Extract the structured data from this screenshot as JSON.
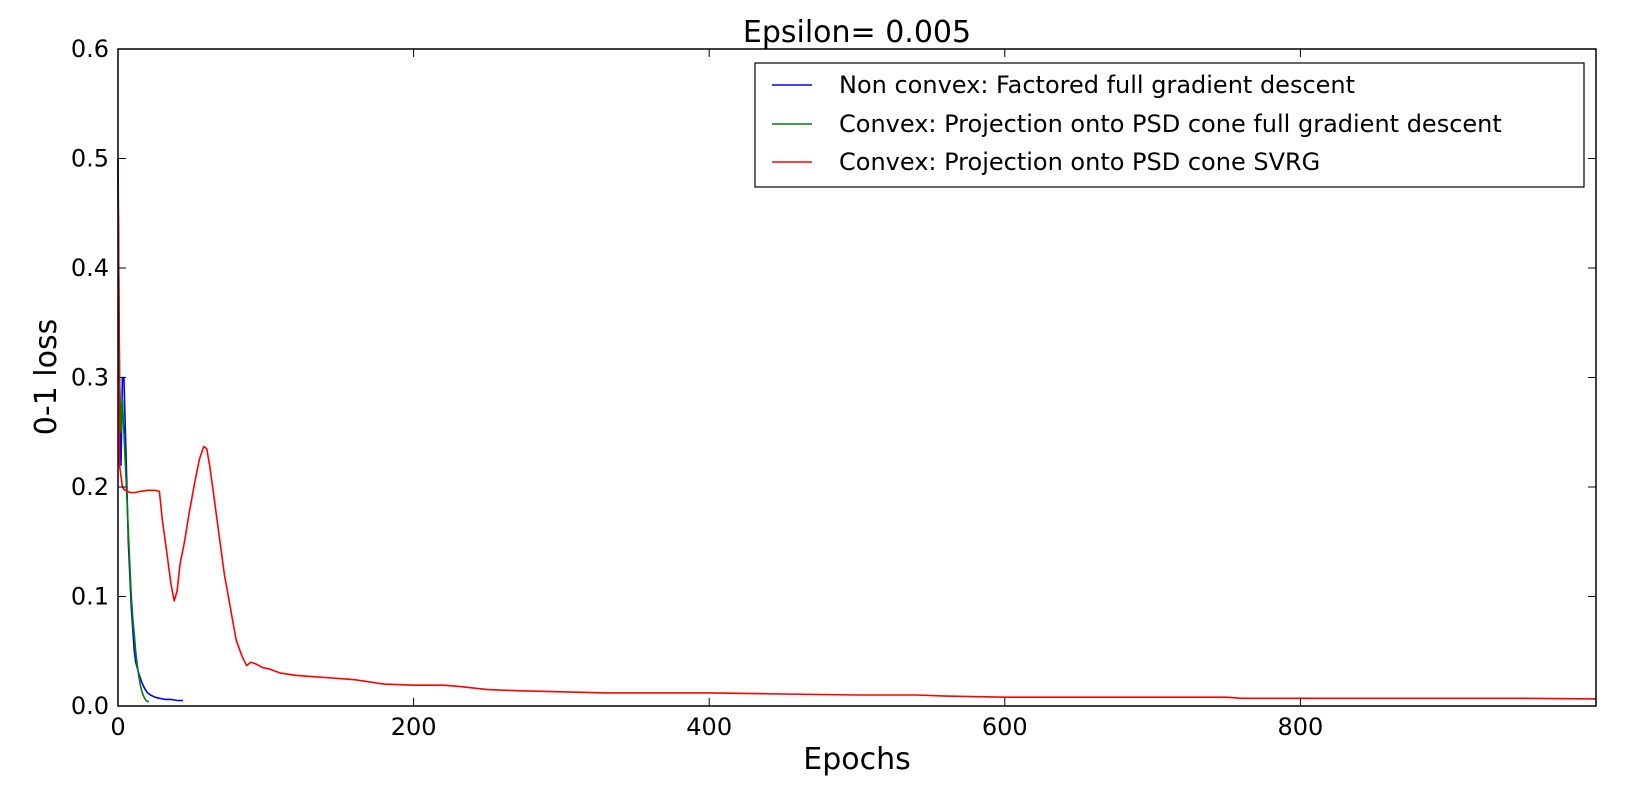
{
  "chart_data": {
    "type": "line",
    "title": "Epsilon= 0.005",
    "xlabel": "Epochs",
    "ylabel": "0-1 loss",
    "xlim": [
      0,
      1000
    ],
    "ylim": [
      0,
      0.6
    ],
    "xticks": [
      0,
      200,
      400,
      600,
      800
    ],
    "xtick_labels": [
      "0",
      "200",
      "400",
      "600",
      "800"
    ],
    "yticks": [
      0.0,
      0.1,
      0.2,
      0.3,
      0.4,
      0.5,
      0.6
    ],
    "ytick_labels": [
      "0.0",
      "0.1",
      "0.2",
      "0.3",
      "0.4",
      "0.5",
      "0.6"
    ],
    "grid": false,
    "legend_position": "top-right",
    "series": [
      {
        "name": "Non convex: Factored full gradient descent",
        "color": "#0000ff",
        "x": [
          0,
          1,
          2,
          3,
          4,
          5,
          6,
          7,
          8,
          9,
          10,
          11,
          12,
          13,
          14,
          16,
          18,
          20,
          22,
          25,
          28,
          32,
          36,
          40,
          44
        ],
        "y": [
          0.5,
          0.3,
          0.22,
          0.3,
          0.3,
          0.25,
          0.2,
          0.15,
          0.12,
          0.09,
          0.07,
          0.05,
          0.04,
          0.035,
          0.03,
          0.022,
          0.016,
          0.012,
          0.01,
          0.008,
          0.007,
          0.006,
          0.006,
          0.005,
          0.005
        ]
      },
      {
        "name": "Convex: Projection onto PSD cone full gradient descent",
        "color": "#008000",
        "x": [
          0,
          1,
          2,
          3,
          4,
          5,
          6,
          7,
          8,
          9,
          10,
          11,
          12,
          13,
          14,
          15,
          16,
          17,
          18,
          19,
          20,
          21
        ],
        "y": [
          0.48,
          0.3,
          0.25,
          0.28,
          0.25,
          0.22,
          0.19,
          0.16,
          0.13,
          0.1,
          0.08,
          0.065,
          0.05,
          0.038,
          0.028,
          0.02,
          0.014,
          0.01,
          0.007,
          0.005,
          0.004,
          0.004
        ]
      },
      {
        "name": "Convex: Projection onto PSD cone SVRG",
        "color": "#ff0000",
        "x": [
          0,
          1,
          2,
          3,
          4,
          5,
          8,
          12,
          15,
          20,
          25,
          28,
          30,
          33,
          36,
          38,
          40,
          42,
          45,
          48,
          52,
          55,
          58,
          60,
          62,
          65,
          68,
          72,
          76,
          80,
          84,
          87,
          90,
          94,
          98,
          102,
          106,
          110,
          120,
          130,
          140,
          150,
          160,
          180,
          200,
          220,
          230,
          250,
          270,
          300,
          330,
          360,
          400,
          450,
          500,
          540,
          560,
          600,
          650,
          700,
          750,
          760,
          800,
          850,
          900,
          950,
          1000
        ],
        "y": [
          0.5,
          0.22,
          0.21,
          0.2,
          0.198,
          0.197,
          0.195,
          0.195,
          0.196,
          0.197,
          0.197,
          0.196,
          0.17,
          0.14,
          0.11,
          0.096,
          0.105,
          0.13,
          0.15,
          0.175,
          0.205,
          0.225,
          0.237,
          0.235,
          0.22,
          0.19,
          0.16,
          0.12,
          0.09,
          0.06,
          0.045,
          0.037,
          0.04,
          0.038,
          0.035,
          0.034,
          0.032,
          0.03,
          0.028,
          0.027,
          0.026,
          0.025,
          0.024,
          0.02,
          0.019,
          0.019,
          0.018,
          0.015,
          0.014,
          0.013,
          0.012,
          0.012,
          0.012,
          0.011,
          0.01,
          0.01,
          0.009,
          0.008,
          0.008,
          0.008,
          0.008,
          0.007,
          0.007,
          0.007,
          0.007,
          0.007,
          0.0065
        ]
      }
    ]
  }
}
